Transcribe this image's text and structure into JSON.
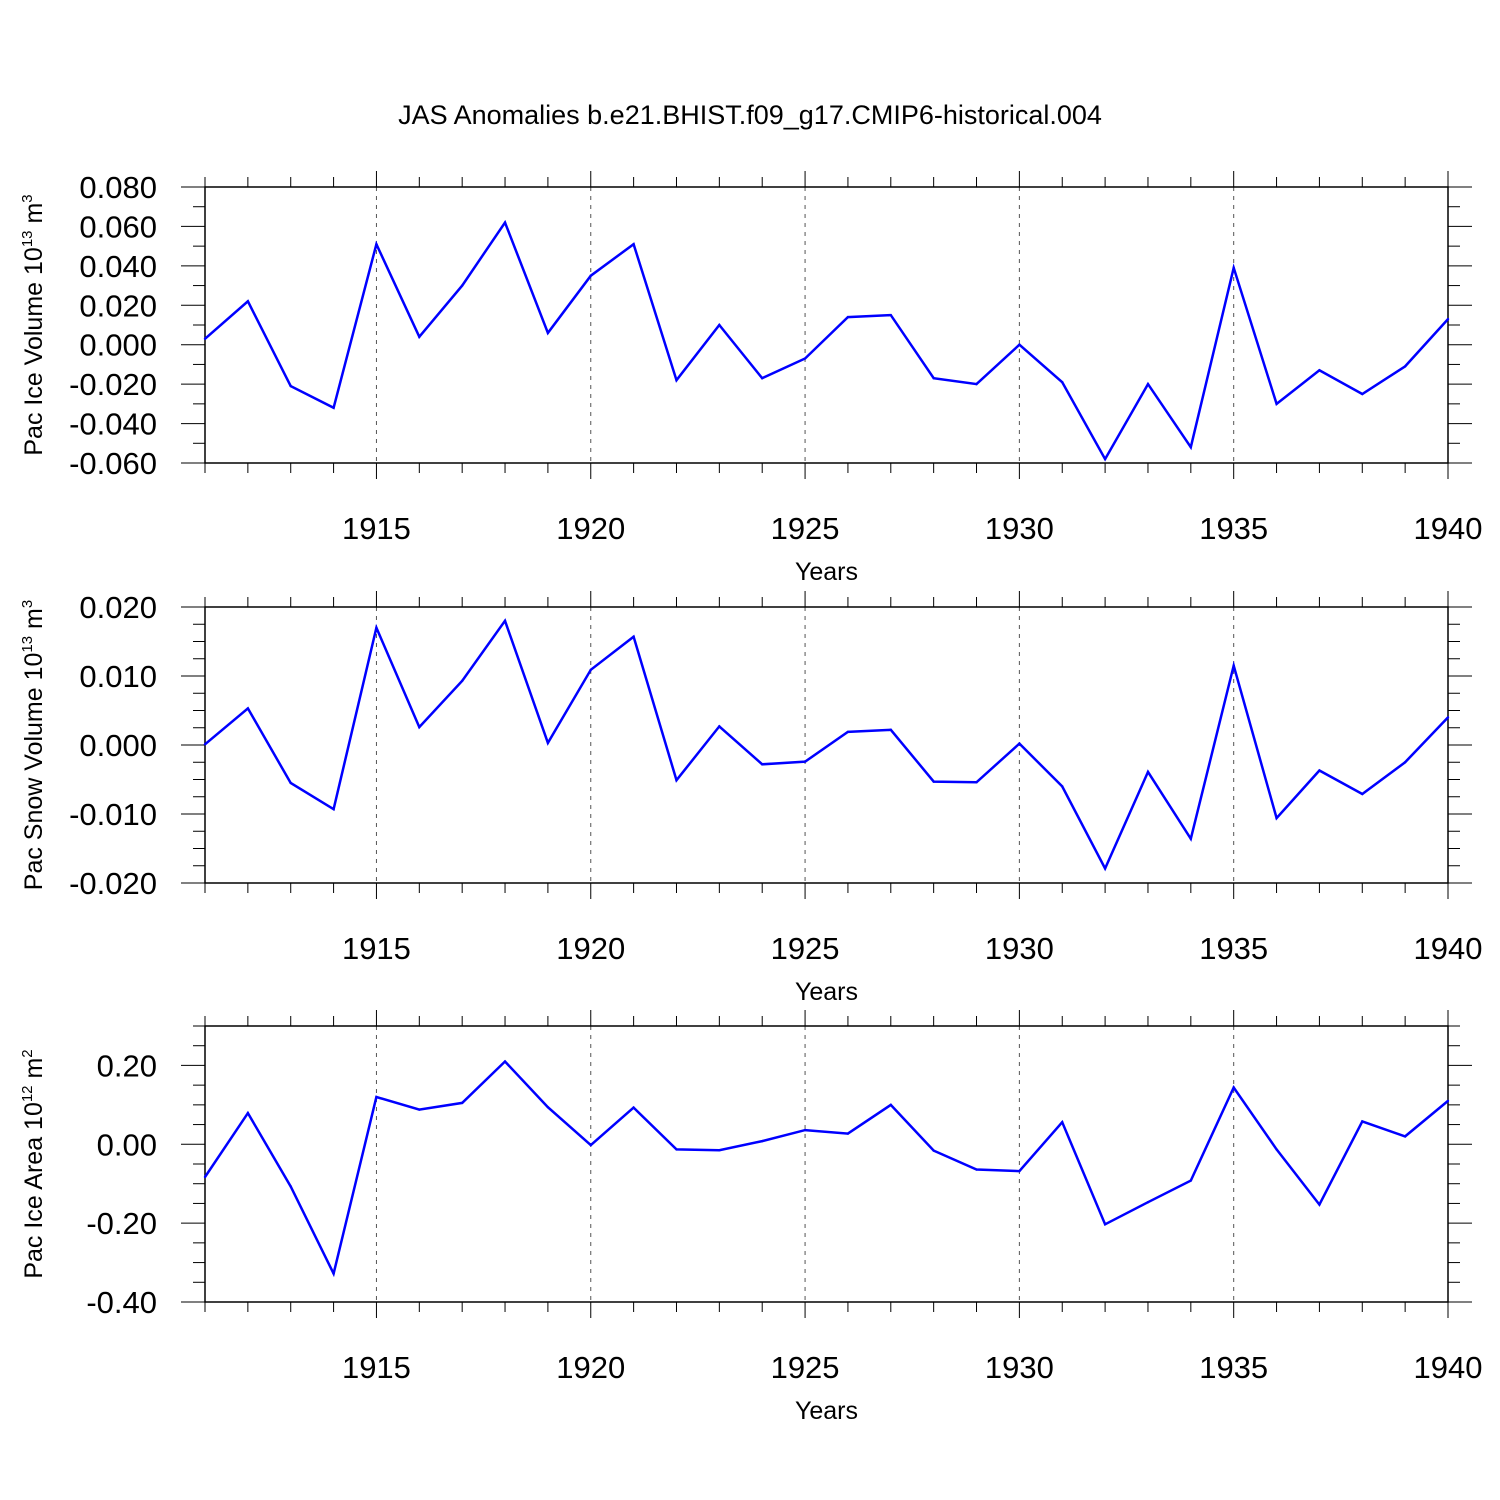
{
  "title": "JAS Anomalies b.e21.BHIST.f09_g17.CMIP6-historical.004",
  "line_color": "#0000ff",
  "chart_data": [
    {
      "type": "line",
      "ylabel": "Pac Ice Volume 10",
      "ylabel_exp": "13",
      "ylabel_unit": "m",
      "ylabel_unit_exp": "3",
      "xlabel": "Years",
      "xlim": [
        1911,
        1940
      ],
      "ylim": [
        -0.06,
        0.08
      ],
      "yticks": [
        -0.06,
        -0.04,
        -0.02,
        0.0,
        0.02,
        0.04,
        0.06,
        0.08
      ],
      "ytick_labels": [
        "-0.060",
        "-0.040",
        "-0.020",
        "0.000",
        "0.020",
        "0.040",
        "0.060",
        "0.080"
      ],
      "yminor": [
        -0.05,
        -0.03,
        -0.01,
        0.01,
        0.03,
        0.05,
        0.07
      ],
      "xticks": [
        1915,
        1920,
        1925,
        1930,
        1935,
        1940
      ],
      "xtick_labels": [
        "1915",
        "1920",
        "1925",
        "1930",
        "1935",
        "1940"
      ],
      "x": [
        1911,
        1912,
        1913,
        1914,
        1915,
        1916,
        1917,
        1918,
        1919,
        1920,
        1921,
        1922,
        1923,
        1924,
        1925,
        1926,
        1927,
        1928,
        1929,
        1930,
        1931,
        1932,
        1933,
        1934,
        1935,
        1936,
        1937,
        1938,
        1939,
        1940
      ],
      "values": [
        0.003,
        0.022,
        -0.021,
        -0.032,
        0.051,
        0.004,
        0.03,
        0.062,
        0.006,
        0.035,
        0.051,
        -0.018,
        0.01,
        -0.017,
        -0.007,
        0.014,
        0.015,
        -0.017,
        -0.02,
        0.0,
        -0.019,
        -0.058,
        -0.02,
        -0.052,
        0.039,
        -0.03,
        -0.013,
        -0.025,
        -0.011,
        0.013
      ]
    },
    {
      "type": "line",
      "ylabel": "Pac Snow Volume 10",
      "ylabel_exp": "13",
      "ylabel_unit": "m",
      "ylabel_unit_exp": "3",
      "xlabel": "Years",
      "xlim": [
        1911,
        1940
      ],
      "ylim": [
        -0.02,
        0.02
      ],
      "yticks": [
        -0.02,
        -0.01,
        0.0,
        0.01,
        0.02
      ],
      "ytick_labels": [
        "-0.020",
        "-0.010",
        "0.000",
        "0.010",
        "0.020"
      ],
      "yminor": [
        -0.0175,
        -0.015,
        -0.0125,
        -0.0075,
        -0.005,
        -0.0025,
        0.0025,
        0.005,
        0.0075,
        0.0125,
        0.015,
        0.0175
      ],
      "xticks": [
        1915,
        1920,
        1925,
        1930,
        1935,
        1940
      ],
      "xtick_labels": [
        "1915",
        "1920",
        "1925",
        "1930",
        "1935",
        "1940"
      ],
      "x": [
        1911,
        1912,
        1913,
        1914,
        1915,
        1916,
        1917,
        1918,
        1919,
        1920,
        1921,
        1922,
        1923,
        1924,
        1925,
        1926,
        1927,
        1928,
        1929,
        1930,
        1931,
        1932,
        1933,
        1934,
        1935,
        1936,
        1937,
        1938,
        1939,
        1940
      ],
      "values": [
        0.0001,
        0.0053,
        -0.0055,
        -0.0093,
        0.017,
        0.0026,
        0.0093,
        0.018,
        0.0003,
        0.0109,
        0.0157,
        -0.0051,
        0.0027,
        -0.0028,
        -0.0024,
        0.0019,
        0.0022,
        -0.0053,
        -0.0054,
        0.0002,
        -0.006,
        -0.0179,
        -0.0039,
        -0.0136,
        0.0115,
        -0.0106,
        -0.0037,
        -0.0071,
        -0.0025,
        0.004
      ]
    },
    {
      "type": "line",
      "ylabel": "Pac Ice Area 10",
      "ylabel_exp": "12",
      "ylabel_unit": "m",
      "ylabel_unit_exp": "2",
      "xlabel": "Years",
      "xlim": [
        1911,
        1940
      ],
      "ylim": [
        -0.4,
        0.3
      ],
      "yticks": [
        -0.4,
        -0.2,
        0.0,
        0.2
      ],
      "ytick_labels": [
        "-0.40",
        "-0.20",
        "0.00",
        "0.20"
      ],
      "yminor": [
        -0.35,
        -0.3,
        -0.25,
        -0.15,
        -0.1,
        -0.05,
        0.05,
        0.1,
        0.15,
        0.25,
        0.3
      ],
      "xticks": [
        1915,
        1920,
        1925,
        1930,
        1935,
        1940
      ],
      "xtick_labels": [
        "1915",
        "1920",
        "1925",
        "1930",
        "1935",
        "1940"
      ],
      "x": [
        1911,
        1912,
        1913,
        1914,
        1915,
        1916,
        1917,
        1918,
        1919,
        1920,
        1921,
        1922,
        1923,
        1924,
        1925,
        1926,
        1927,
        1928,
        1929,
        1930,
        1931,
        1932,
        1933,
        1934,
        1935,
        1936,
        1937,
        1938,
        1939,
        1940
      ],
      "values": [
        -0.083,
        0.079,
        -0.107,
        -0.328,
        0.12,
        0.088,
        0.105,
        0.21,
        0.094,
        -0.002,
        0.093,
        -0.013,
        -0.015,
        0.008,
        0.036,
        0.027,
        0.1,
        -0.016,
        -0.064,
        -0.068,
        0.056,
        -0.203,
        -0.147,
        -0.092,
        0.144,
        -0.013,
        -0.153,
        0.058,
        0.02,
        0.11
      ]
    }
  ]
}
